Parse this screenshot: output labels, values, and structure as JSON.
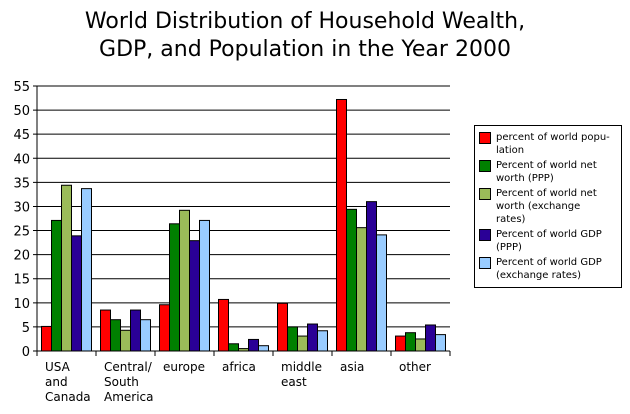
{
  "chart_data": {
    "type": "bar",
    "title": "World Distribution of Household Wealth, GDP, and Population in the Year 2000",
    "title_lines": [
      "World Distribution of Household Wealth,",
      "GDP, and Population in the Year 2000"
    ],
    "categories": [
      "USA and Canada",
      "Central/ South America",
      "europe",
      "africa",
      "middle east",
      "asia",
      "other"
    ],
    "category_lines": [
      [
        "USA",
        "and",
        "Canada"
      ],
      [
        "Central/",
        "South",
        "America"
      ],
      [
        "europe"
      ],
      [
        "africa"
      ],
      [
        "middle",
        "east"
      ],
      [
        "asia"
      ],
      [
        "other"
      ]
    ],
    "ylim": [
      0,
      55
    ],
    "yticks": [
      0,
      5,
      10,
      15,
      20,
      25,
      30,
      35,
      40,
      45,
      50,
      55
    ],
    "grid": true,
    "legend_position": "right",
    "series": [
      {
        "name": "percent of world population",
        "legend_lines": [
          "percent of world popu-",
          "lation"
        ],
        "color": "#ff0000",
        "values": [
          5.1,
          8.5,
          9.6,
          10.7,
          9.9,
          52.2,
          3.1
        ]
      },
      {
        "name": "Percent of world net worth (PPP)",
        "legend_lines": [
          "Percent of world net",
          "worth (PPP)"
        ],
        "color": "#008000",
        "values": [
          27.1,
          6.5,
          26.4,
          1.5,
          5.0,
          29.4,
          3.8
        ]
      },
      {
        "name": "Percent of world net worth (exchange rates)",
        "legend_lines": [
          "Percent of world net",
          "worth (exchange",
          "rates)"
        ],
        "color": "#9bbb59",
        "values": [
          34.4,
          4.3,
          29.2,
          0.5,
          3.1,
          25.6,
          2.5
        ]
      },
      {
        "name": "Percent of world GDP (PPP)",
        "legend_lines": [
          "Percent of world GDP",
          "(PPP)"
        ],
        "color": "#2a0096",
        "values": [
          23.9,
          8.5,
          22.9,
          2.4,
          5.6,
          31.0,
          5.4
        ]
      },
      {
        "name": "Percent of world GDP (exchange rates)",
        "legend_lines": [
          "Percent of world GDP",
          "(exchange rates)"
        ],
        "color": "#99ccff",
        "values": [
          33.7,
          6.5,
          27.1,
          1.1,
          4.2,
          24.1,
          3.4
        ]
      }
    ]
  }
}
